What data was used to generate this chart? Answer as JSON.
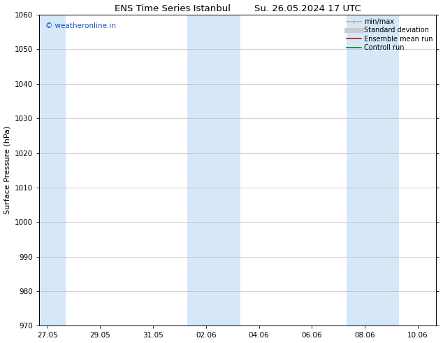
{
  "title_left": "ENS Time Series Istanbul",
  "title_right": "Su. 26.05.2024 17 UTC",
  "ylabel": "Surface Pressure (hPa)",
  "ylim": [
    970,
    1060
  ],
  "yticks": [
    970,
    980,
    990,
    1000,
    1010,
    1020,
    1030,
    1040,
    1050,
    1060
  ],
  "xtick_labels": [
    "27.05",
    "29.05",
    "31.05",
    "02.06",
    "04.06",
    "06.06",
    "08.06",
    "10.06"
  ],
  "xtick_positions": [
    0,
    2,
    4,
    6,
    8,
    10,
    12,
    14
  ],
  "xlim": [
    -0.3,
    14.7
  ],
  "shaded_regions": [
    {
      "xstart": -0.3,
      "xend": 0.7
    },
    {
      "xstart": 5.3,
      "xend": 7.3
    },
    {
      "xstart": 11.3,
      "xend": 13.3
    }
  ],
  "shaded_color": "#d6e8f7",
  "watermark_text": "© weatheronline.in",
  "watermark_color": "#1a52c4",
  "legend_entries": [
    {
      "label": "min/max",
      "color": "#b0b0b0",
      "lw": 1.2
    },
    {
      "label": "Standard deviation",
      "color": "#cccccc",
      "lw": 5
    },
    {
      "label": "Ensemble mean run",
      "color": "#dd0000",
      "lw": 1.2
    },
    {
      "label": "Controll run",
      "color": "#008800",
      "lw": 1.2
    }
  ],
  "bg_color": "#ffffff",
  "grid_color": "#bbbbbb",
  "title_fontsize": 9.5,
  "label_fontsize": 8,
  "tick_fontsize": 7.5,
  "watermark_fontsize": 7.5,
  "legend_fontsize": 7
}
